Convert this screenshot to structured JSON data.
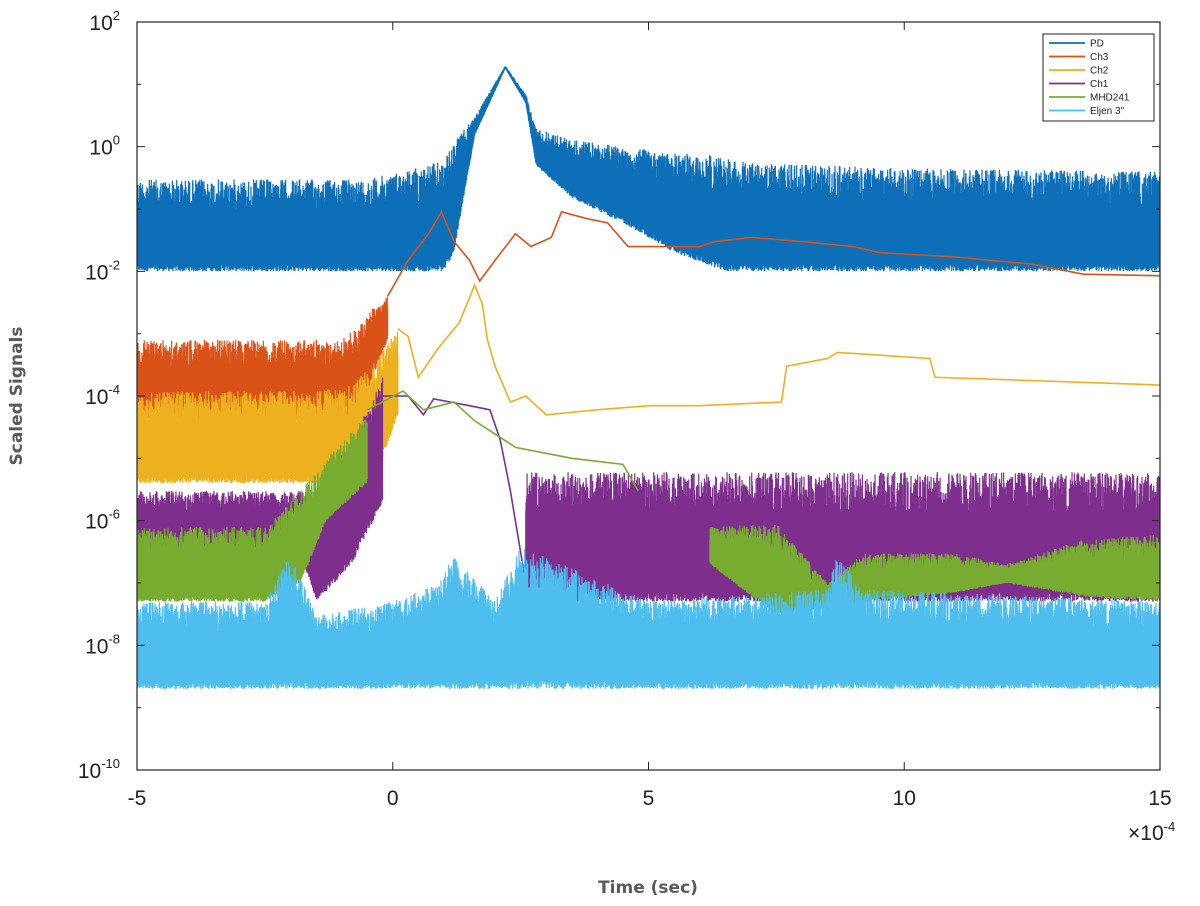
{
  "chart_data": {
    "type": "line",
    "title": "",
    "xlabel": "Time (sec)",
    "ylabel": "Scaled Signals",
    "x_multiplier": "×10-4",
    "x_multiplier_base": "×10",
    "x_multiplier_exp": "-4",
    "xlim": [
      -5,
      15
    ],
    "ylim": [
      1e-10,
      100
    ],
    "yscale": "log",
    "grid": false,
    "legend_position": "top-right",
    "x_ticks": [
      "-5",
      "0",
      "5",
      "10",
      "15"
    ],
    "y_ticks": [
      {
        "base": "10",
        "exp": "2"
      },
      {
        "base": "10",
        "exp": "0"
      },
      {
        "base": "10",
        "exp": "-2"
      },
      {
        "base": "10",
        "exp": "-4"
      },
      {
        "base": "10",
        "exp": "-6"
      },
      {
        "base": "10",
        "exp": "-8"
      },
      {
        "base": "10",
        "exp": "-10"
      }
    ],
    "series": [
      {
        "name": "PD",
        "color": "#0c6fb8",
        "style": "noise",
        "envelope": [
          [
            -5,
            0.01,
            0.3
          ],
          [
            -0.5,
            0.01,
            0.3
          ],
          [
            1.0,
            0.01,
            0.6
          ],
          [
            1.2,
            0.02,
            1.2
          ],
          [
            1.6,
            1.5,
            3
          ],
          [
            2.2,
            18,
            20
          ],
          [
            2.6,
            5,
            7
          ],
          [
            2.8,
            0.5,
            2.0
          ],
          [
            3.5,
            0.15,
            1.3
          ],
          [
            4.5,
            0.06,
            1.0
          ],
          [
            5.5,
            0.02,
            0.8
          ],
          [
            6.5,
            0.01,
            0.7
          ],
          [
            7,
            0.01,
            0.55
          ],
          [
            10,
            0.01,
            0.45
          ],
          [
            15,
            0.01,
            0.4
          ]
        ]
      },
      {
        "name": "Ch3",
        "color": "#d95319",
        "style": "mixed",
        "envelope": [
          [
            -5,
            4e-05,
            0.0008
          ],
          [
            -1,
            4e-05,
            0.0008
          ],
          [
            -0.6,
            5e-05,
            0.0015
          ],
          [
            -0.4,
            0.0002,
            0.0025
          ],
          [
            -0.1,
            0.0008,
            0.004
          ]
        ],
        "line": [
          [
            -0.1,
            0.004
          ],
          [
            0.3,
            0.015
          ],
          [
            0.7,
            0.04
          ],
          [
            0.95,
            0.09
          ],
          [
            1.2,
            0.03
          ],
          [
            1.5,
            0.015
          ],
          [
            1.7,
            0.007
          ],
          [
            2.0,
            0.015
          ],
          [
            2.4,
            0.04
          ],
          [
            2.7,
            0.025
          ],
          [
            3.1,
            0.035
          ],
          [
            3.3,
            0.09
          ],
          [
            3.8,
            0.07
          ],
          [
            4.2,
            0.06
          ],
          [
            4.6,
            0.025
          ],
          [
            5.0,
            0.025
          ],
          [
            6.0,
            0.025
          ],
          [
            6.3,
            0.03
          ],
          [
            7.0,
            0.035
          ],
          [
            8.0,
            0.03
          ],
          [
            9.0,
            0.025
          ],
          [
            9.5,
            0.02
          ],
          [
            11,
            0.017
          ],
          [
            12.5,
            0.013
          ],
          [
            13.5,
            0.009
          ],
          [
            15,
            0.0085
          ]
        ]
      },
      {
        "name": "Ch2",
        "color": "#edb120",
        "style": "mixed",
        "envelope": [
          [
            -5,
            4e-06,
            0.00012
          ],
          [
            -1.5,
            4e-06,
            0.00012
          ],
          [
            -0.8,
            3e-06,
            0.00015
          ],
          [
            -0.3,
            6e-06,
            0.0004
          ],
          [
            0.1,
            5e-05,
            0.0012
          ]
        ],
        "line": [
          [
            0.1,
            0.0012
          ],
          [
            0.3,
            0.0009
          ],
          [
            0.5,
            0.0002
          ],
          [
            0.9,
            0.0006
          ],
          [
            1.3,
            0.0015
          ],
          [
            1.6,
            0.006
          ],
          [
            1.75,
            0.003
          ],
          [
            1.85,
            0.0008
          ],
          [
            2.0,
            0.0003
          ],
          [
            2.3,
            8e-05
          ],
          [
            2.6,
            0.0001
          ],
          [
            3.0,
            5e-05
          ],
          [
            4.0,
            6e-05
          ],
          [
            5.0,
            7e-05
          ],
          [
            6.0,
            7e-05
          ],
          [
            7.6,
            8e-05
          ],
          [
            7.7,
            0.0003
          ],
          [
            8.5,
            0.0004
          ],
          [
            8.7,
            0.0005
          ],
          [
            10.5,
            0.0004
          ],
          [
            10.6,
            0.0002
          ],
          [
            15,
            0.00015
          ]
        ]
      },
      {
        "name": "Ch1",
        "color": "#7e2f8e",
        "style": "mixed",
        "envelope": [
          [
            -5,
            3e-07,
            3e-06
          ],
          [
            -1.8,
            3e-07,
            3e-06
          ],
          [
            -1.5,
            5e-08,
            3e-06
          ],
          [
            -0.8,
            2e-07,
            2e-05
          ],
          [
            -0.2,
            2e-06,
            0.0002
          ]
        ],
        "line": [
          [
            -0.2,
            0.0001
          ],
          [
            0.3,
            0.0001
          ],
          [
            0.6,
            5e-05
          ],
          [
            0.8,
            9e-05
          ],
          [
            1.5,
            7e-05
          ],
          [
            1.9,
            6e-05
          ],
          [
            2.1,
            2e-05
          ],
          [
            2.3,
            3e-06
          ],
          [
            2.6,
            1e-07
          ]
        ],
        "envelope2": [
          [
            2.6,
            5e-08,
            6e-06
          ],
          [
            15,
            5e-08,
            6e-06
          ]
        ]
      },
      {
        "name": "MHD241",
        "color": "#77ac30",
        "style": "mixed",
        "envelope": [
          [
            -5,
            5e-08,
            8e-07
          ],
          [
            -2.5,
            5e-08,
            8e-07
          ],
          [
            -1.8,
            1e-07,
            3e-06
          ],
          [
            -1.3,
            1e-06,
            1e-05
          ],
          [
            -0.5,
            4e-06,
            5e-05
          ]
        ],
        "line": [
          [
            -0.5,
            6e-05
          ],
          [
            0.2,
            0.00012
          ],
          [
            0.6,
            6e-05
          ],
          [
            1.2,
            8e-05
          ],
          [
            1.6,
            4e-05
          ],
          [
            2.4,
            1.5e-05
          ],
          [
            3.5,
            1e-05
          ],
          [
            4.5,
            8e-06
          ],
          [
            4.8,
            3e-06
          ]
        ],
        "envelope2": [
          [
            6.2,
            2e-07,
            8e-07
          ],
          [
            7.5,
            3e-08,
            9e-07
          ],
          [
            8.5,
            4e-08,
            1e-07
          ],
          [
            9.2,
            5e-08,
            3e-07
          ],
          [
            11,
            7e-08,
            3e-07
          ],
          [
            12,
            1e-07,
            2e-07
          ],
          [
            13.5,
            6e-08,
            5e-07
          ],
          [
            15,
            5e-08,
            6e-07
          ]
        ]
      },
      {
        "name": "Eljen 3\"",
        "color": "#4dbeee",
        "style": "noise",
        "envelope": [
          [
            -5,
            2e-09,
            5e-08
          ],
          [
            -2.5,
            2e-09,
            5e-08
          ],
          [
            -2.0,
            2e-09,
            3e-07
          ],
          [
            -1.5,
            2e-09,
            3e-08
          ],
          [
            0,
            2e-09,
            5e-08
          ],
          [
            0.9,
            2e-09,
            1e-07
          ],
          [
            1.2,
            2e-09,
            3e-07
          ],
          [
            2.0,
            2e-09,
            5e-08
          ],
          [
            2.5,
            2e-09,
            4e-07
          ],
          [
            5,
            2e-09,
            5e-08
          ],
          [
            8.5,
            2e-09,
            8e-08
          ],
          [
            8.7,
            2e-09,
            3e-07
          ],
          [
            9.2,
            2e-09,
            8e-08
          ],
          [
            15,
            2e-09,
            5e-08
          ]
        ]
      }
    ]
  }
}
